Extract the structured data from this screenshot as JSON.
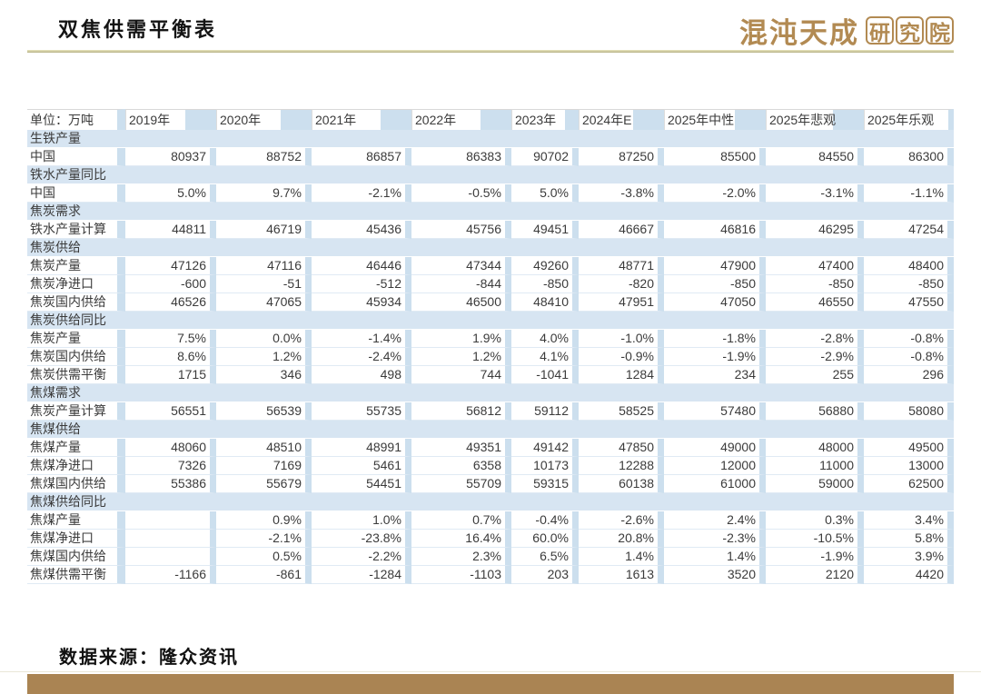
{
  "header": {
    "title": "双焦供需平衡表",
    "logo": {
      "script_text": "混沌天成",
      "boxed_chars": [
        "研",
        "究",
        "院"
      ]
    }
  },
  "footer": {
    "source": "数据来源：隆众资讯"
  },
  "colors": {
    "logo-gold": "#b28a52",
    "bar": "#aa8453",
    "sep": "#ccdfee",
    "section-blue": "#d7e5f2",
    "top-line-gold": "#c2bd8f"
  },
  "table": {
    "unit_label": "单位：万吨",
    "columns": [
      "2019年",
      "2020年",
      "2021年",
      "2022年",
      "2023年",
      "2024年E",
      "2025年中性",
      "2025年悲观",
      "2025年乐观"
    ],
    "rows": [
      {
        "type": "section",
        "label": "生铁产量"
      },
      {
        "type": "data",
        "label": "中国",
        "values": [
          "80937",
          "88752",
          "86857",
          "86383",
          "90702",
          "87250",
          "85500",
          "84550",
          "86300"
        ]
      },
      {
        "type": "section",
        "label": "铁水产量同比"
      },
      {
        "type": "data",
        "label": "中国",
        "values": [
          "5.0%",
          "9.7%",
          "-2.1%",
          "-0.5%",
          "5.0%",
          "-3.8%",
          "-2.0%",
          "-3.1%",
          "-1.1%"
        ]
      },
      {
        "type": "section",
        "label": "焦炭需求"
      },
      {
        "type": "data",
        "label": "铁水产量计算",
        "values": [
          "44811",
          "46719",
          "45436",
          "45756",
          "49451",
          "46667",
          "46816",
          "46295",
          "47254"
        ]
      },
      {
        "type": "section",
        "label": "焦炭供给"
      },
      {
        "type": "data",
        "label": "焦炭产量",
        "values": [
          "47126",
          "47116",
          "46446",
          "47344",
          "49260",
          "48771",
          "47900",
          "47400",
          "48400"
        ]
      },
      {
        "type": "data",
        "label": "焦炭净进口",
        "values": [
          "-600",
          "-51",
          "-512",
          "-844",
          "-850",
          "-820",
          "-850",
          "-850",
          "-850"
        ]
      },
      {
        "type": "data",
        "label": "焦炭国内供给",
        "values": [
          "46526",
          "47065",
          "45934",
          "46500",
          "48410",
          "47951",
          "47050",
          "46550",
          "47550"
        ]
      },
      {
        "type": "section",
        "label": "焦炭供给同比"
      },
      {
        "type": "data",
        "label": "焦炭产量",
        "values": [
          "7.5%",
          "0.0%",
          "-1.4%",
          "1.9%",
          "4.0%",
          "-1.0%",
          "-1.8%",
          "-2.8%",
          "-0.8%"
        ]
      },
      {
        "type": "data",
        "label": "焦炭国内供给",
        "values": [
          "8.6%",
          "1.2%",
          "-2.4%",
          "1.2%",
          "4.1%",
          "-0.9%",
          "-1.9%",
          "-2.9%",
          "-0.8%"
        ]
      },
      {
        "type": "data",
        "label": "焦炭供需平衡",
        "values": [
          "1715",
          "346",
          "498",
          "744",
          "-1041",
          "1284",
          "234",
          "255",
          "296"
        ]
      },
      {
        "type": "section",
        "label": "焦煤需求"
      },
      {
        "type": "data",
        "label": "焦炭产量计算",
        "values": [
          "56551",
          "56539",
          "55735",
          "56812",
          "59112",
          "58525",
          "57480",
          "56880",
          "58080"
        ]
      },
      {
        "type": "section",
        "label": "焦煤供给"
      },
      {
        "type": "data",
        "label": "焦煤产量",
        "values": [
          "48060",
          "48510",
          "48991",
          "49351",
          "49142",
          "47850",
          "49000",
          "48000",
          "49500"
        ]
      },
      {
        "type": "data",
        "label": "焦煤净进口",
        "values": [
          "7326",
          "7169",
          "5461",
          "6358",
          "10173",
          "12288",
          "12000",
          "11000",
          "13000"
        ]
      },
      {
        "type": "data",
        "label": "焦煤国内供给",
        "values": [
          "55386",
          "55679",
          "54451",
          "55709",
          "59315",
          "60138",
          "61000",
          "59000",
          "62500"
        ]
      },
      {
        "type": "section",
        "label": "焦煤供给同比"
      },
      {
        "type": "data",
        "label": "焦煤产量",
        "values": [
          "",
          "0.9%",
          "1.0%",
          "0.7%",
          "-0.4%",
          "-2.6%",
          "2.4%",
          "0.3%",
          "3.4%"
        ]
      },
      {
        "type": "data",
        "label": "焦煤净进口",
        "values": [
          "",
          "-2.1%",
          "-23.8%",
          "16.4%",
          "60.0%",
          "20.8%",
          "-2.3%",
          "-10.5%",
          "5.8%"
        ]
      },
      {
        "type": "data",
        "label": "焦煤国内供给",
        "values": [
          "",
          "0.5%",
          "-2.2%",
          "2.3%",
          "6.5%",
          "1.4%",
          "1.4%",
          "-1.9%",
          "3.9%"
        ]
      },
      {
        "type": "data",
        "label": "焦煤供需平衡",
        "values": [
          "-1166",
          "-861",
          "-1284",
          "-1103",
          "203",
          "1613",
          "3520",
          "2120",
          "4420"
        ]
      }
    ]
  }
}
